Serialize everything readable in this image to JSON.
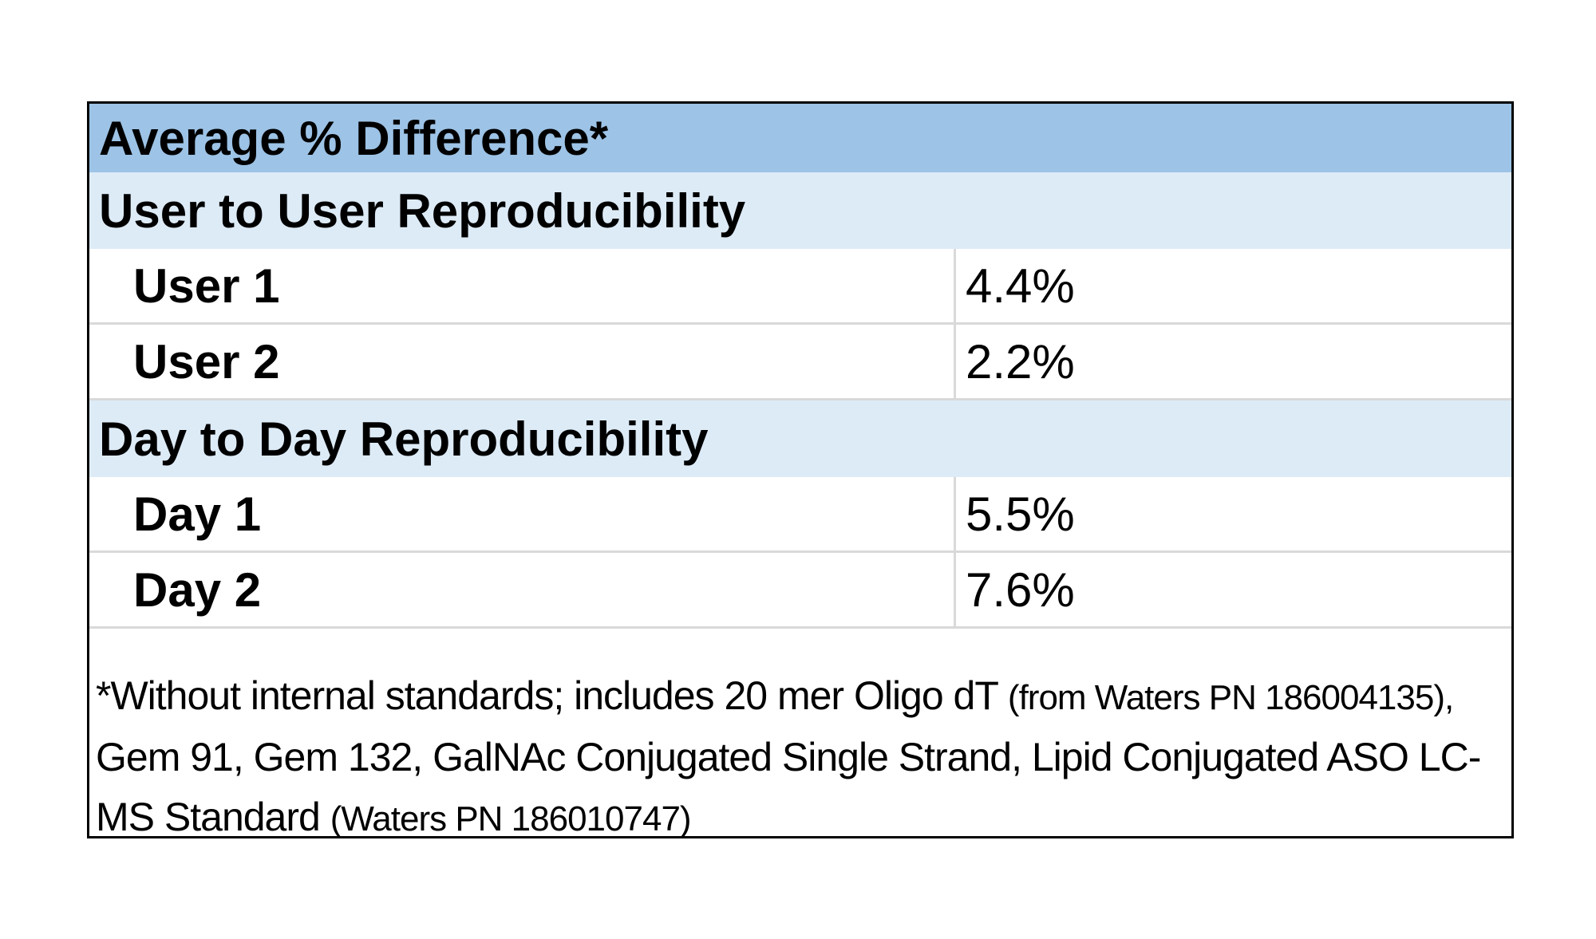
{
  "colors": {
    "title_band": "#9dc3e6",
    "section_band": "#ddebf7",
    "grid_line": "#d9d9d9",
    "border": "#000000"
  },
  "chart_data": {
    "type": "table",
    "title": "Average % Difference*",
    "sections": [
      {
        "label": "User to User Reproducibility",
        "rows": [
          {
            "label": "User 1",
            "value": "4.4%"
          },
          {
            "label": "User 2",
            "value": "2.2%"
          }
        ]
      },
      {
        "label": "Day to Day Reproducibility",
        "rows": [
          {
            "label": "Day 1",
            "value": "5.5%"
          },
          {
            "label": "Day 2",
            "value": "7.6%"
          }
        ]
      }
    ],
    "footnote": {
      "part1": "*Without internal standards; includes 20 mer Oligo dT",
      "part2": "(from Waters PN 186004135),",
      "part3": "Gem 91, Gem 132, GalNAc Conjugated Single Strand, Lipid Conjugated ASO LC-MS Standard",
      "part4": "(Waters PN 186010747)"
    }
  }
}
